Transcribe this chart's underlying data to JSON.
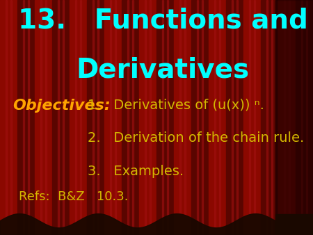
{
  "title_line1": "13.   Functions and",
  "title_line2": "Derivatives",
  "title_color": "#00ffff",
  "title_fontsize": 28,
  "objectives_label": "Objectives:",
  "objectives_color": "#ffa500",
  "objectives_fontsize": 16,
  "items": [
    "1.   Derivatives of (u(x)) ⁿ.",
    "2.   Derivation of the chain rule.",
    "3.   Examples."
  ],
  "items_color": "#d4b800",
  "items_fontsize": 14,
  "refs_text": "Refs:  B&Z   10.3.",
  "refs_color": "#d4b800",
  "refs_fontsize": 13,
  "bg_color": "#6b0a00",
  "stripe_dark": "#5a0500",
  "stripe_light": "#8b0800",
  "dark_side_color": "#1a0000",
  "wave_color": "#1a0800"
}
